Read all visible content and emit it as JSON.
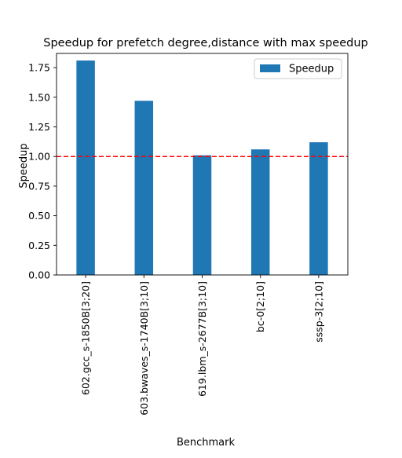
{
  "chart_data": {
    "type": "bar",
    "title": "Speedup for prefetch degree,distance with max speedup",
    "xlabel": "Benchmark",
    "ylabel": "Speedup",
    "categories": [
      "602.gcc_s-1850B[3;20]",
      "603.bwaves_s-1740B[3;10]",
      "619.lbm_s-2677B[3;10]",
      "bc-0[2;10]",
      "sssp-3[2;10]"
    ],
    "series": [
      {
        "name": "Speedup",
        "values": [
          1.81,
          1.47,
          1.01,
          1.06,
          1.12
        ],
        "color": "#1f77b4"
      }
    ],
    "ylim": [
      0,
      1.87
    ],
    "yticks": [
      0.0,
      0.25,
      0.5,
      0.75,
      1.0,
      1.25,
      1.5,
      1.75
    ],
    "ytick_labels": [
      "0.00",
      "0.25",
      "0.50",
      "0.75",
      "1.00",
      "1.25",
      "1.50",
      "1.75"
    ],
    "reference_line": {
      "y": 1.0,
      "style": "dashed",
      "color": "#ff0000"
    },
    "legend_position": "top-right",
    "grid": false
  }
}
